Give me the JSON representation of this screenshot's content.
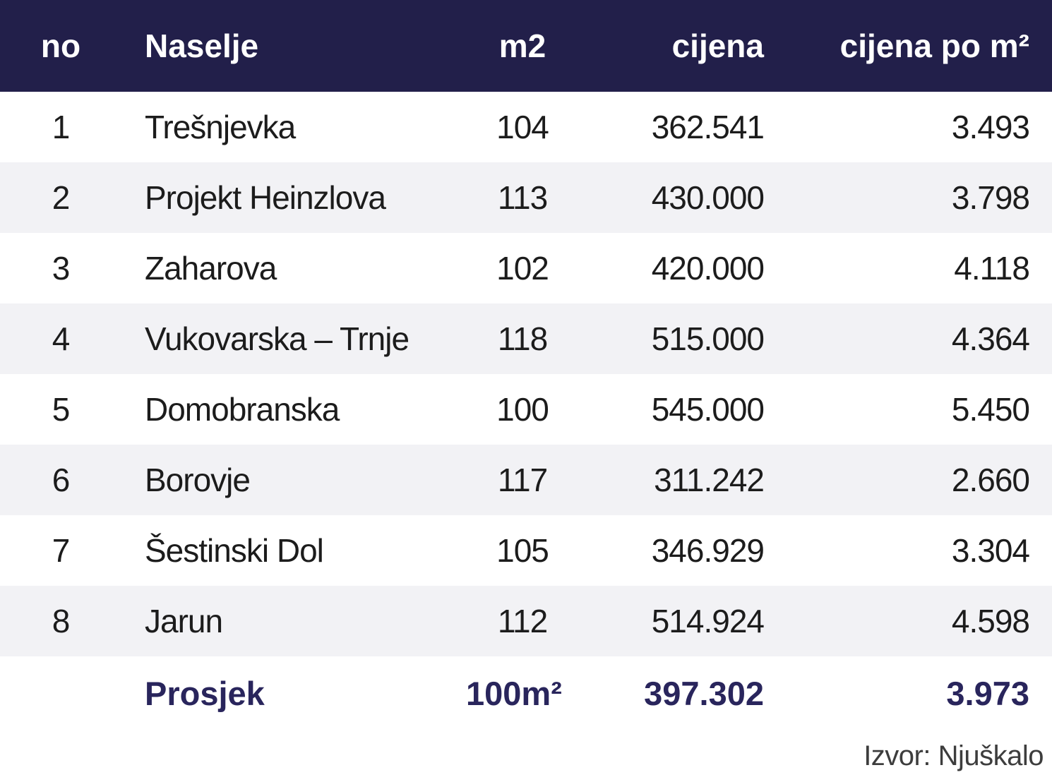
{
  "colors": {
    "header_bg": "#221f4a",
    "header_text": "#ffffff",
    "row_alt_bg": "#f2f2f5",
    "row_bg": "#ffffff",
    "body_text": "#1c1c1c",
    "summary_text": "#29255c",
    "source_text": "#3d3d3d"
  },
  "table": {
    "columns": [
      "no",
      "Naselje",
      "m2",
      "cijena",
      "cijena po m²"
    ],
    "rows": [
      {
        "no": "1",
        "naselje": "Trešnjevka",
        "m2": "104",
        "cijena": "362.541",
        "cijena_po_m2": "3.493"
      },
      {
        "no": "2",
        "naselje": "Projekt Heinzlova",
        "m2": "113",
        "cijena": "430.000",
        "cijena_po_m2": "3.798"
      },
      {
        "no": "3",
        "naselje": "Zaharova",
        "m2": "102",
        "cijena": "420.000",
        "cijena_po_m2": "4.118"
      },
      {
        "no": "4",
        "naselje": "Vukovarska – Trnje",
        "m2": "118",
        "cijena": "515.000",
        "cijena_po_m2": "4.364"
      },
      {
        "no": "5",
        "naselje": "Domobranska",
        "m2": "100",
        "cijena": "545.000",
        "cijena_po_m2": "5.450"
      },
      {
        "no": "6",
        "naselje": "Borovje",
        "m2": "117",
        "cijena": "311.242",
        "cijena_po_m2": "2.660"
      },
      {
        "no": "7",
        "naselje": "Šestinski Dol",
        "m2": "105",
        "cijena": "346.929",
        "cijena_po_m2": "3.304"
      },
      {
        "no": "8",
        "naselje": "Jarun",
        "m2": "112",
        "cijena": "514.924",
        "cijena_po_m2": "4.598"
      }
    ],
    "summary": {
      "label": "Prosjek",
      "m2": "100m²",
      "cijena": "397.302",
      "cijena_po_m2": "3.973"
    },
    "source": "Izvor: Njuškalo"
  },
  "chart_data": {
    "type": "table",
    "title": "",
    "columns": [
      "no",
      "Naselje",
      "m2",
      "cijena",
      "cijena po m²"
    ],
    "rows": [
      [
        1,
        "Trešnjevka",
        104,
        362541,
        3493
      ],
      [
        2,
        "Projekt Heinzlova",
        113,
        430000,
        3798
      ],
      [
        3,
        "Zaharova",
        102,
        420000,
        4118
      ],
      [
        4,
        "Vukovarska – Trnje",
        118,
        515000,
        4364
      ],
      [
        5,
        "Domobranska",
        100,
        545000,
        5450
      ],
      [
        6,
        "Borovje",
        117,
        311242,
        2660
      ],
      [
        7,
        "Šestinski Dol",
        105,
        346929,
        3304
      ],
      [
        8,
        "Jarun",
        112,
        514924,
        4598
      ]
    ],
    "summary_row": [
      "",
      "Prosjek",
      "100m²",
      397302,
      3973
    ],
    "source": "Izvor: Njuškalo",
    "layout": {
      "zebra_striping": true,
      "header_bg": "#221f4a"
    }
  }
}
